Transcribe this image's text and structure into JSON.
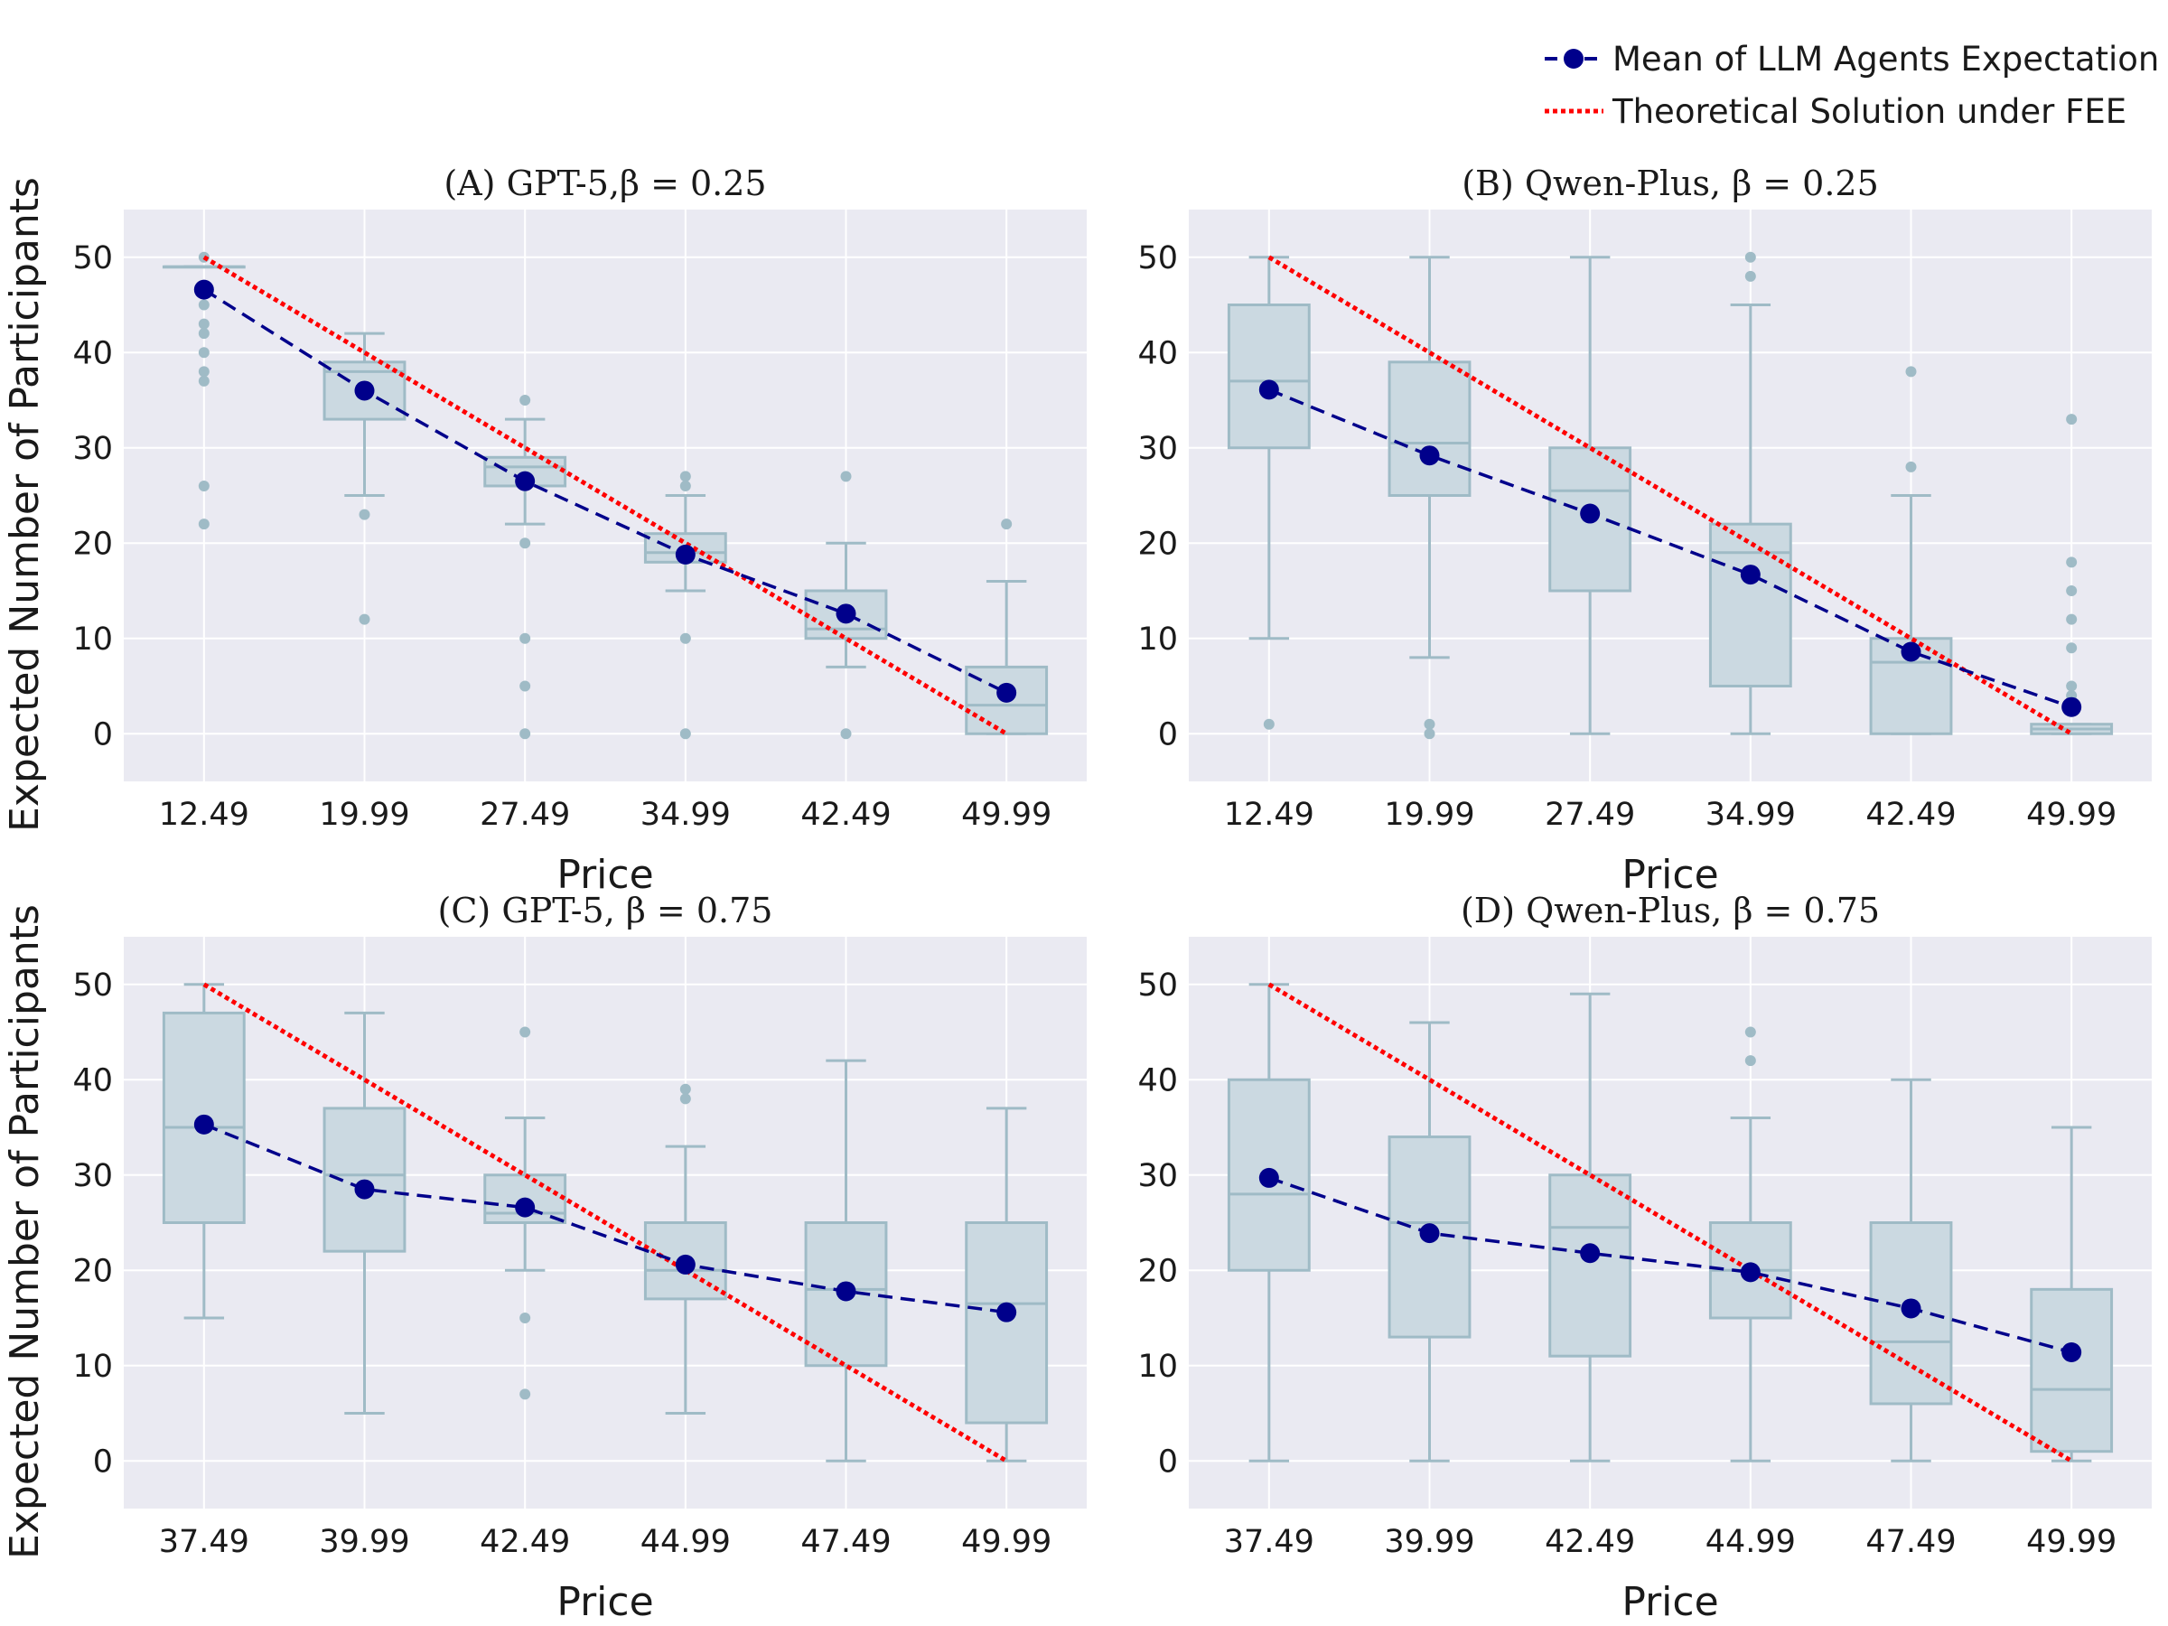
{
  "legend": {
    "mean_label": "Mean of LLM Agents Expectation",
    "theory_label": "Theoretical Solution under FEE",
    "mean_color": "#00008b",
    "theory_color": "#ff0000"
  },
  "style": {
    "panel_bg": "#eaeaf2",
    "box_fill": "#cbd9e1",
    "box_edge": "#9fbbc6",
    "grid": "#ffffff"
  },
  "shared": {
    "ylabel": "Expected Number of Participants",
    "xlabel": "Price",
    "yticks": [
      0,
      10,
      20,
      30,
      40,
      50
    ],
    "ylim": [
      -5,
      55
    ]
  },
  "chart_data": [
    {
      "type": "box",
      "title": "(A) GPT-5,β = 0.25",
      "xlabel": "Price",
      "ylabel": "Expected Number of Participants",
      "categories": [
        "12.49",
        "19.99",
        "27.49",
        "34.99",
        "42.49",
        "49.99"
      ],
      "boxes": [
        {
          "whislo": 49,
          "q1": 49,
          "med": 49,
          "q3": 49,
          "whishi": 49,
          "fliers": [
            50,
            47,
            45,
            43,
            42,
            40,
            38,
            37,
            26,
            22
          ]
        },
        {
          "whislo": 25,
          "q1": 33,
          "med": 38,
          "q3": 39,
          "whishi": 42,
          "fliers": [
            23,
            12
          ]
        },
        {
          "whislo": 22,
          "q1": 26,
          "med": 28,
          "q3": 29,
          "whishi": 33,
          "fliers": [
            35,
            20,
            10,
            5,
            0
          ]
        },
        {
          "whislo": 15,
          "q1": 18,
          "med": 19,
          "q3": 21,
          "whishi": 25,
          "fliers": [
            27,
            26,
            10,
            0
          ]
        },
        {
          "whislo": 7,
          "q1": 10,
          "med": 11,
          "q3": 15,
          "whishi": 20,
          "fliers": [
            27,
            0
          ]
        },
        {
          "whislo": 0,
          "q1": 0,
          "med": 3,
          "q3": 7,
          "whishi": 16,
          "fliers": [
            22
          ]
        }
      ],
      "mean": [
        46.6,
        36.0,
        26.5,
        18.8,
        12.6,
        4.3
      ],
      "theory": [
        50,
        40,
        30,
        20,
        10,
        0
      ]
    },
    {
      "type": "box",
      "title": "(B) Qwen-Plus, β = 0.25",
      "xlabel": "Price",
      "ylabel": "",
      "categories": [
        "12.49",
        "19.99",
        "27.49",
        "34.99",
        "42.49",
        "49.99"
      ],
      "boxes": [
        {
          "whislo": 10,
          "q1": 30,
          "med": 37,
          "q3": 45,
          "whishi": 50,
          "fliers": [
            1
          ]
        },
        {
          "whislo": 8,
          "q1": 25,
          "med": 30.5,
          "q3": 39,
          "whishi": 50,
          "fliers": [
            1,
            0
          ]
        },
        {
          "whislo": 0,
          "q1": 15,
          "med": 25.5,
          "q3": 30,
          "whishi": 50,
          "fliers": []
        },
        {
          "whislo": 0,
          "q1": 5,
          "med": 19,
          "q3": 22,
          "whishi": 45,
          "fliers": [
            50,
            48
          ]
        },
        {
          "whislo": 0,
          "q1": 0,
          "med": 7.5,
          "q3": 10,
          "whishi": 25,
          "fliers": [
            38,
            28
          ]
        },
        {
          "whislo": 0,
          "q1": 0,
          "med": 0.5,
          "q3": 1,
          "whishi": 1,
          "fliers": [
            33,
            18,
            15,
            12,
            9,
            5,
            4
          ]
        }
      ],
      "mean": [
        36.1,
        29.2,
        23.1,
        16.7,
        8.6,
        2.8
      ],
      "theory": [
        50,
        40,
        30,
        20,
        10,
        0
      ]
    },
    {
      "type": "box",
      "title": "(C) GPT-5, β = 0.75",
      "xlabel": "Price",
      "ylabel": "Expected Number of Participants",
      "categories": [
        "37.49",
        "39.99",
        "42.49",
        "44.99",
        "47.49",
        "49.99"
      ],
      "boxes": [
        {
          "whislo": 15,
          "q1": 25,
          "med": 35,
          "q3": 47,
          "whishi": 50,
          "fliers": []
        },
        {
          "whislo": 5,
          "q1": 22,
          "med": 30,
          "q3": 37,
          "whishi": 47,
          "fliers": []
        },
        {
          "whislo": 20,
          "q1": 25,
          "med": 26,
          "q3": 30,
          "whishi": 36,
          "fliers": [
            45,
            15,
            7
          ]
        },
        {
          "whislo": 5,
          "q1": 17,
          "med": 20,
          "q3": 25,
          "whishi": 33,
          "fliers": [
            39,
            38
          ]
        },
        {
          "whislo": 0,
          "q1": 10,
          "med": 18,
          "q3": 25,
          "whishi": 42,
          "fliers": []
        },
        {
          "whislo": 0,
          "q1": 4,
          "med": 16.5,
          "q3": 25,
          "whishi": 37,
          "fliers": []
        }
      ],
      "mean": [
        35.3,
        28.5,
        26.6,
        20.6,
        17.8,
        15.6
      ],
      "theory": [
        50,
        40,
        30,
        20,
        10,
        0
      ]
    },
    {
      "type": "box",
      "title": "(D) Qwen-Plus, β = 0.75",
      "xlabel": "Price",
      "ylabel": "",
      "categories": [
        "37.49",
        "39.99",
        "42.49",
        "44.99",
        "47.49",
        "49.99"
      ],
      "boxes": [
        {
          "whislo": 0,
          "q1": 20,
          "med": 28,
          "q3": 40,
          "whishi": 50,
          "fliers": []
        },
        {
          "whislo": 0,
          "q1": 13,
          "med": 25,
          "q3": 34,
          "whishi": 46,
          "fliers": []
        },
        {
          "whislo": 0,
          "q1": 11,
          "med": 24.5,
          "q3": 30,
          "whishi": 49,
          "fliers": []
        },
        {
          "whislo": 0,
          "q1": 15,
          "med": 20,
          "q3": 25,
          "whishi": 36,
          "fliers": [
            45,
            42
          ]
        },
        {
          "whislo": 0,
          "q1": 6,
          "med": 12.5,
          "q3": 25,
          "whishi": 40,
          "fliers": []
        },
        {
          "whislo": 0,
          "q1": 1,
          "med": 7.5,
          "q3": 18,
          "whishi": 35,
          "fliers": []
        }
      ],
      "mean": [
        29.7,
        23.9,
        21.8,
        19.8,
        16.0,
        11.4
      ],
      "theory": [
        50,
        40,
        30,
        20,
        10,
        0
      ]
    }
  ]
}
